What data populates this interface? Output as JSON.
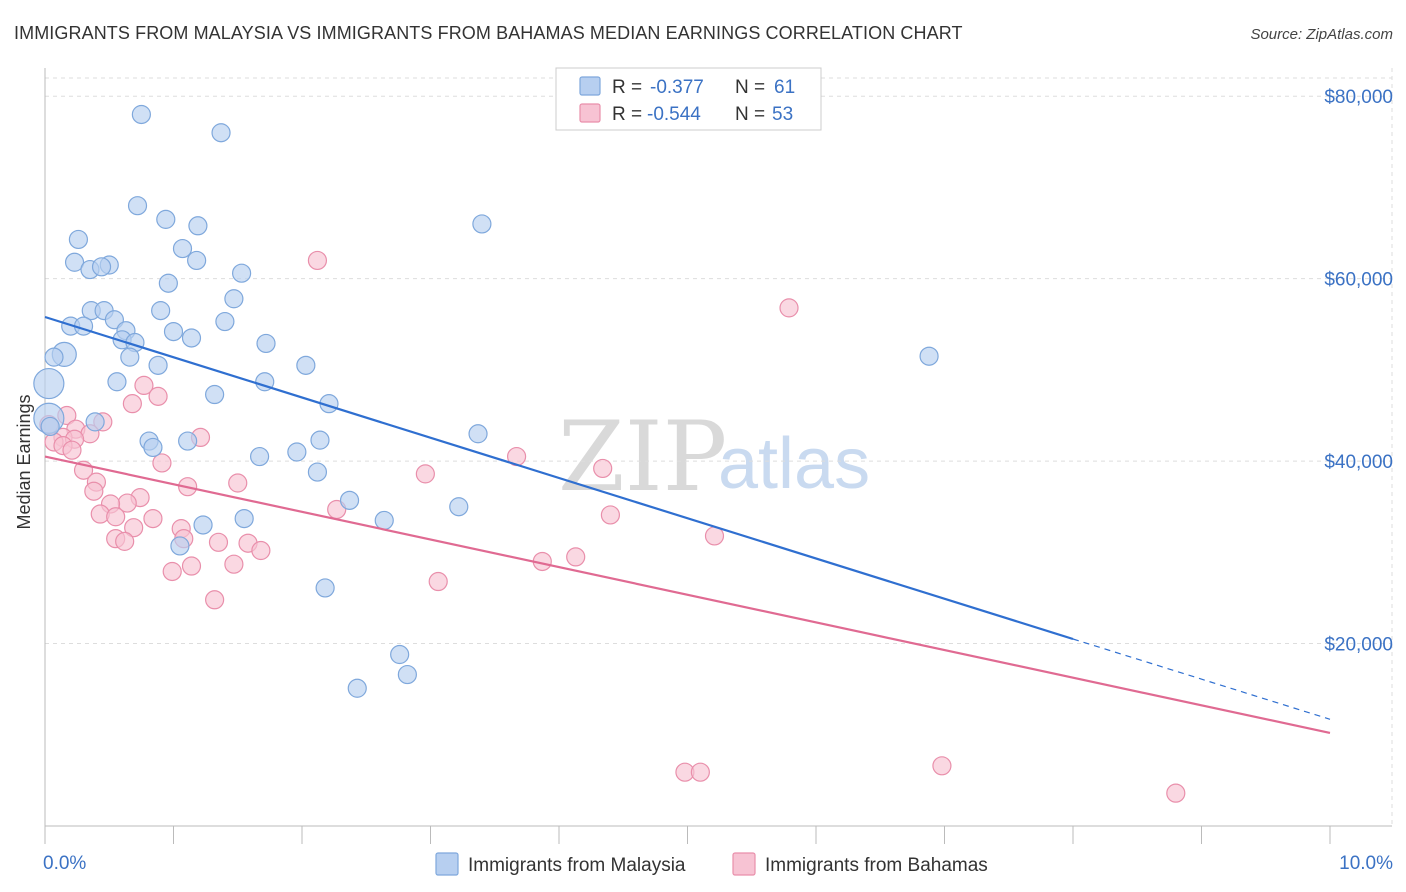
{
  "title": "IMMIGRANTS FROM MALAYSIA VS IMMIGRANTS FROM BAHAMAS MEDIAN EARNINGS CORRELATION CHART",
  "source": "Source: ZipAtlas.com",
  "watermark": {
    "zip": "ZIP",
    "atlas": "atlas"
  },
  "colors": {
    "malaysia_fill": "#b7cff0",
    "malaysia_stroke": "#7fa8dc",
    "malaysia_line": "#2f6fd0",
    "bahamas_fill": "#f7c3d3",
    "bahamas_stroke": "#e98fab",
    "bahamas_line": "#e06a92",
    "tick_text": "#3b72c4",
    "grid": "#dddddd"
  },
  "legend": {
    "rows": [
      {
        "r_label": "R =",
        "r_value": "-0.377",
        "n_label": "N =",
        "n_value": "61"
      },
      {
        "r_label": "R =",
        "r_value": "-0.544",
        "n_label": "N =",
        "n_value": "53"
      }
    ]
  },
  "chart_data": {
    "type": "scatter",
    "title": "IMMIGRANTS FROM MALAYSIA VS IMMIGRANTS FROM BAHAMAS MEDIAN EARNINGS CORRELATION CHART",
    "xlabel": "",
    "ylabel": "Median Earnings",
    "xlim": [
      0,
      10
    ],
    "ylim": [
      0,
      82000
    ],
    "x_tick_labels": {
      "left": "0.0%",
      "right": "10.0%"
    },
    "y_ticks": [
      {
        "value": 20000,
        "label": "$20,000"
      },
      {
        "value": 40000,
        "label": "$40,000"
      },
      {
        "value": 60000,
        "label": "$60,000"
      },
      {
        "value": 80000,
        "label": "$80,000"
      }
    ],
    "series": [
      {
        "name": "Immigrants from Malaysia",
        "r": -0.377,
        "n": 61,
        "trend": {
          "x0": 0.0,
          "y0": 55800,
          "x1": 8.0,
          "y1": 20500,
          "dash_to_x": 10.0,
          "dash_to_y": 11700
        },
        "points": [
          [
            0.75,
            78000,
            9
          ],
          [
            1.37,
            76000,
            9
          ],
          [
            0.72,
            68000,
            9
          ],
          [
            0.94,
            66500,
            9
          ],
          [
            3.4,
            66000,
            9
          ],
          [
            1.19,
            65800,
            9
          ],
          [
            0.26,
            64300,
            9
          ],
          [
            1.07,
            63300,
            9
          ],
          [
            0.23,
            61800,
            9
          ],
          [
            1.18,
            62000,
            9
          ],
          [
            0.35,
            61000,
            9
          ],
          [
            0.5,
            61500,
            9
          ],
          [
            0.44,
            61300,
            9
          ],
          [
            1.53,
            60600,
            9
          ],
          [
            0.96,
            59500,
            9
          ],
          [
            1.47,
            57800,
            9
          ],
          [
            0.36,
            56500,
            9
          ],
          [
            0.46,
            56500,
            9
          ],
          [
            0.9,
            56500,
            9
          ],
          [
            0.54,
            55500,
            9
          ],
          [
            1.4,
            55300,
            9
          ],
          [
            0.2,
            54800,
            9
          ],
          [
            0.3,
            54800,
            9
          ],
          [
            0.63,
            54300,
            9
          ],
          [
            1.0,
            54200,
            9
          ],
          [
            1.14,
            53500,
            9
          ],
          [
            0.6,
            53300,
            9
          ],
          [
            0.7,
            53000,
            9
          ],
          [
            1.72,
            52900,
            9
          ],
          [
            0.15,
            51700,
            12
          ],
          [
            0.07,
            51400,
            9
          ],
          [
            0.66,
            51400,
            9
          ],
          [
            6.88,
            51500,
            9
          ],
          [
            0.88,
            50500,
            9
          ],
          [
            2.03,
            50500,
            9
          ],
          [
            0.03,
            48500,
            15
          ],
          [
            0.56,
            48700,
            9
          ],
          [
            1.71,
            48700,
            9
          ],
          [
            1.32,
            47300,
            9
          ],
          [
            2.21,
            46300,
            9
          ],
          [
            0.03,
            44700,
            15
          ],
          [
            0.39,
            44300,
            9
          ],
          [
            3.37,
            43000,
            9
          ],
          [
            0.81,
            42200,
            9
          ],
          [
            1.11,
            42200,
            9
          ],
          [
            2.14,
            42300,
            9
          ],
          [
            0.84,
            41500,
            9
          ],
          [
            1.96,
            41000,
            9
          ],
          [
            1.67,
            40500,
            9
          ],
          [
            2.12,
            38800,
            9
          ],
          [
            2.37,
            35700,
            9
          ],
          [
            3.22,
            35000,
            9
          ],
          [
            1.23,
            33000,
            9
          ],
          [
            1.55,
            33700,
            9
          ],
          [
            2.64,
            33500,
            9
          ],
          [
            1.05,
            30700,
            9
          ],
          [
            2.18,
            26100,
            9
          ],
          [
            2.76,
            18800,
            9
          ],
          [
            2.82,
            16600,
            9
          ],
          [
            2.43,
            15100,
            9
          ],
          [
            0.04,
            43800,
            9
          ]
        ]
      },
      {
        "name": "Immigrants from Bahamas",
        "r": -0.544,
        "n": 53,
        "trend": {
          "x0": 0.0,
          "y0": 40500,
          "x1": 10.0,
          "y1": 10200
        },
        "points": [
          [
            2.12,
            62000,
            9
          ],
          [
            5.79,
            56800,
            9
          ],
          [
            0.77,
            48300,
            9
          ],
          [
            0.88,
            47100,
            9
          ],
          [
            0.68,
            46300,
            9
          ],
          [
            0.17,
            45000,
            9
          ],
          [
            0.45,
            44300,
            9
          ],
          [
            0.03,
            44000,
            9
          ],
          [
            0.24,
            43500,
            9
          ],
          [
            0.35,
            43000,
            9
          ],
          [
            1.21,
            42600,
            9
          ],
          [
            0.14,
            42600,
            9
          ],
          [
            0.07,
            42100,
            9
          ],
          [
            0.23,
            42400,
            9
          ],
          [
            0.14,
            41700,
            9
          ],
          [
            0.21,
            41200,
            9
          ],
          [
            3.67,
            40500,
            9
          ],
          [
            0.91,
            39800,
            9
          ],
          [
            0.3,
            39000,
            9
          ],
          [
            4.34,
            39200,
            9
          ],
          [
            2.96,
            38600,
            9
          ],
          [
            0.4,
            37700,
            9
          ],
          [
            1.5,
            37600,
            9
          ],
          [
            1.11,
            37200,
            9
          ],
          [
            0.38,
            36700,
            9
          ],
          [
            0.74,
            36000,
            9
          ],
          [
            0.64,
            35400,
            9
          ],
          [
            0.51,
            35300,
            9
          ],
          [
            2.27,
            34700,
            9
          ],
          [
            0.43,
            34200,
            9
          ],
          [
            0.55,
            33900,
            9
          ],
          [
            4.4,
            34100,
            9
          ],
          [
            0.84,
            33700,
            9
          ],
          [
            1.06,
            32600,
            9
          ],
          [
            0.69,
            32700,
            9
          ],
          [
            5.21,
            31800,
            9
          ],
          [
            0.55,
            31500,
            9
          ],
          [
            1.08,
            31500,
            9
          ],
          [
            0.62,
            31200,
            9
          ],
          [
            1.35,
            31100,
            9
          ],
          [
            1.58,
            31000,
            9
          ],
          [
            1.68,
            30200,
            9
          ],
          [
            3.87,
            29000,
            9
          ],
          [
            4.13,
            29500,
            9
          ],
          [
            1.47,
            28700,
            9
          ],
          [
            1.14,
            28500,
            9
          ],
          [
            0.99,
            27900,
            9
          ],
          [
            3.06,
            26800,
            9
          ],
          [
            1.32,
            24800,
            9
          ],
          [
            4.98,
            5900,
            9
          ],
          [
            5.1,
            5900,
            9
          ],
          [
            6.98,
            6600,
            9
          ],
          [
            8.8,
            3600,
            9
          ]
        ]
      }
    ],
    "legend_position": "top-center"
  }
}
